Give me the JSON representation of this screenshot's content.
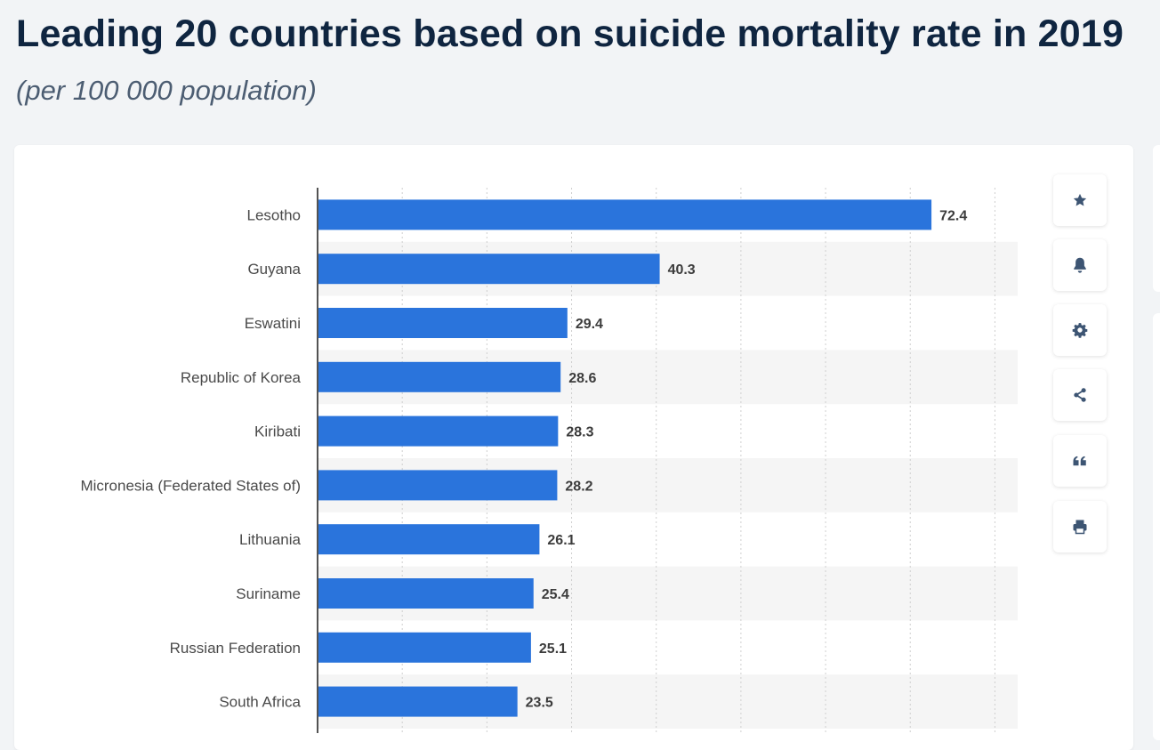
{
  "header": {
    "title": "Leading 20 countries based on suicide mortality rate in 2019",
    "subtitle": "(per 100 000 population)"
  },
  "toolbar": {
    "buttons": [
      {
        "name": "favorite-button",
        "icon": "star-icon"
      },
      {
        "name": "notification-button",
        "icon": "bell-icon"
      },
      {
        "name": "settings-button",
        "icon": "gear-icon"
      },
      {
        "name": "share-button",
        "icon": "share-icon"
      },
      {
        "name": "cite-button",
        "icon": "quote-icon"
      },
      {
        "name": "print-button",
        "icon": "printer-icon"
      }
    ]
  },
  "colors": {
    "bar": "#2a74dc",
    "alt_row": "#f5f5f5",
    "axis": "#1a1a1a",
    "grid": "#cfcfcf"
  },
  "chart_data": {
    "type": "bar",
    "orientation": "horizontal",
    "title": "Leading 20 countries based on suicide mortality rate in 2019",
    "subtitle": "(per 100 000 population)",
    "categories": [
      "Lesotho",
      "Guyana",
      "Eswatini",
      "Republic of Korea",
      "Kiribati",
      "Micronesia (Federated States of)",
      "Lithuania",
      "Suriname",
      "Russian Federation",
      "South Africa"
    ],
    "values": [
      72.4,
      40.3,
      29.4,
      28.6,
      28.3,
      28.2,
      26.1,
      25.4,
      25.1,
      23.5
    ],
    "value_labels": [
      "72.4",
      "40.3",
      "29.4",
      "28.6",
      "28.3",
      "28.2",
      "26.1",
      "25.4",
      "25.1",
      "23.5"
    ],
    "xlim": [
      0,
      80
    ],
    "grid": true,
    "legend": "none"
  }
}
